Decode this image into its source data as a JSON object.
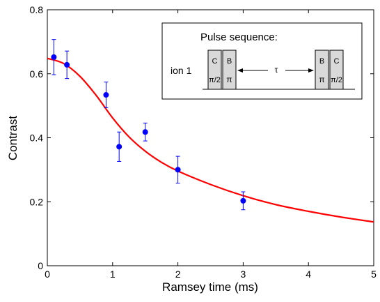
{
  "chart_data": {
    "type": "scatter",
    "xlabel": "Ramsey time (ms)",
    "ylabel": "Contrast",
    "xlim": [
      0,
      5
    ],
    "ylim": [
      0,
      0.8
    ],
    "xticks": [
      "0",
      "1",
      "2",
      "3",
      "4",
      "5"
    ],
    "yticks": [
      "0",
      "0.2",
      "0.4",
      "0.6",
      "0.8"
    ],
    "grid": false,
    "series": [
      {
        "kind": "points-with-errorbars",
        "color": "#0000ff",
        "x": [
          0.1,
          0.3,
          0.9,
          1.1,
          1.5,
          2.0,
          3.0
        ],
        "y": [
          0.652,
          0.628,
          0.534,
          0.372,
          0.418,
          0.3,
          0.203
        ],
        "yerr": [
          0.055,
          0.043,
          0.04,
          0.046,
          0.028,
          0.042,
          0.028
        ]
      },
      {
        "kind": "fit-curve",
        "color": "#ff0000",
        "x": [
          0,
          0.25,
          0.5,
          0.75,
          1.0,
          1.25,
          1.5,
          1.75,
          2.0,
          2.5,
          3.0,
          3.5,
          4.0,
          4.5,
          5.0
        ],
        "y": [
          0.648,
          0.632,
          0.592,
          0.532,
          0.462,
          0.403,
          0.358,
          0.323,
          0.296,
          0.254,
          0.219,
          0.191,
          0.17,
          0.152,
          0.137
        ]
      }
    ],
    "inset": {
      "title": "Pulse sequence:",
      "row_label": "ion 1",
      "tau_label": "τ",
      "left_pulses": [
        {
          "label": "C",
          "sub": "π/2"
        },
        {
          "label": "B",
          "sub": "π"
        }
      ],
      "right_pulses": [
        {
          "label": "B",
          "sub": "π"
        },
        {
          "label": "C",
          "sub": "π/2"
        }
      ]
    }
  }
}
